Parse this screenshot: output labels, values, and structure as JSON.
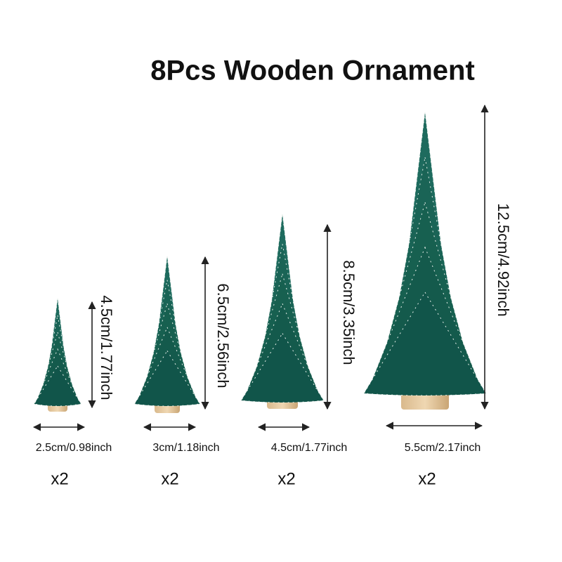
{
  "title": "8Pcs Wooden Ornament",
  "items": [
    {
      "height": "4.5cm/1.77inch",
      "width": "2.5cm/0.98inch",
      "quantity": "x2"
    },
    {
      "height": "6.5cm/2.56inch",
      "width": "3cm/1.18inch",
      "quantity": "x2"
    },
    {
      "height": "8.5cm/3.35inch",
      "width": "4.5cm/1.77inch",
      "quantity": "x2"
    },
    {
      "height": "12.5cm/4.92inch",
      "width": "5.5cm/2.17inch",
      "quantity": "x2"
    }
  ]
}
